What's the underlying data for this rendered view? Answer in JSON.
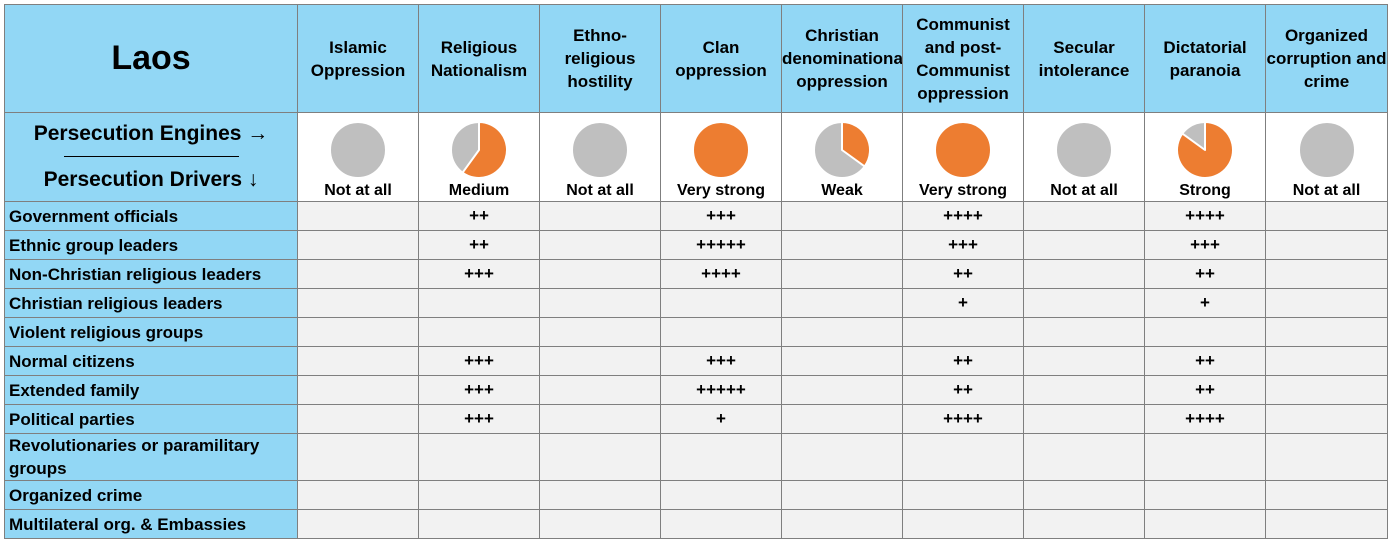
{
  "country": "Laos",
  "legend": {
    "engines_label": "Persecution Engines →",
    "drivers_label": "Persecution Drivers ↓"
  },
  "colors": {
    "header_bg": "#92d7f5",
    "pie_strength": "#ed7d31",
    "pie_empty": "#bfbfbf",
    "cell_bg": "#f2f2f2"
  },
  "engines": [
    {
      "name": "Islamic Oppression",
      "level": "Not at all",
      "strength": 0
    },
    {
      "name": "Religious Nationalism",
      "level": "Medium",
      "strength": 0.6
    },
    {
      "name": "Ethno-religious hostility",
      "level": "Not at all",
      "strength": 0
    },
    {
      "name": "Clan oppression",
      "level": "Very strong",
      "strength": 1
    },
    {
      "name": "Christian denominational oppression",
      "level": "Weak",
      "strength": 0.35
    },
    {
      "name": "Communist and post-Communist oppression",
      "level": "Very strong",
      "strength": 1
    },
    {
      "name": "Secular intolerance",
      "level": "Not at all",
      "strength": 0
    },
    {
      "name": "Dictatorial paranoia",
      "level": "Strong",
      "strength": 0.85
    },
    {
      "name": "Organized corruption and crime",
      "level": "Not at all",
      "strength": 0
    }
  ],
  "drivers": [
    {
      "name": "Government officials",
      "values": [
        "",
        "++",
        "",
        "+++",
        "",
        "++++",
        "",
        "++++",
        ""
      ]
    },
    {
      "name": "Ethnic group leaders",
      "values": [
        "",
        "++",
        "",
        "+++++",
        "",
        "+++",
        "",
        "+++",
        ""
      ]
    },
    {
      "name": "Non-Christian religious leaders",
      "values": [
        "",
        "+++",
        "",
        "++++",
        "",
        "++",
        "",
        "++",
        ""
      ]
    },
    {
      "name": "Christian religious leaders",
      "values": [
        "",
        "",
        "",
        "",
        "",
        "+",
        "",
        "+",
        ""
      ]
    },
    {
      "name": "Violent religious groups",
      "values": [
        "",
        "",
        "",
        "",
        "",
        "",
        "",
        "",
        ""
      ]
    },
    {
      "name": "Normal citizens",
      "values": [
        "",
        "+++",
        "",
        "+++",
        "",
        "++",
        "",
        "++",
        ""
      ]
    },
    {
      "name": "Extended family",
      "values": [
        "",
        "+++",
        "",
        "+++++",
        "",
        "++",
        "",
        "++",
        ""
      ]
    },
    {
      "name": "Political parties",
      "values": [
        "",
        "+++",
        "",
        "+",
        "",
        "++++",
        "",
        "++++",
        ""
      ]
    },
    {
      "name": "Revolutionaries or paramilitary groups",
      "values": [
        "",
        "",
        "",
        "",
        "",
        "",
        "",
        "",
        ""
      ]
    },
    {
      "name": "Organized crime",
      "values": [
        "",
        "",
        "",
        "",
        "",
        "",
        "",
        "",
        ""
      ]
    },
    {
      "name": "Multilateral org. & Embassies",
      "values": [
        "",
        "",
        "",
        "",
        "",
        "",
        "",
        "",
        ""
      ]
    }
  ]
}
